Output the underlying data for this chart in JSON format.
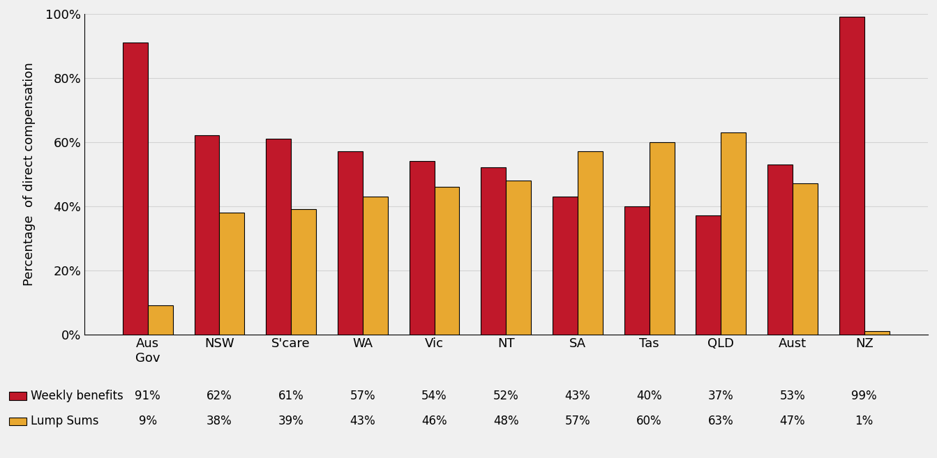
{
  "categories": [
    "Aus\nGov",
    "NSW",
    "S'care",
    "WA",
    "Vic",
    "NT",
    "SA",
    "Tas",
    "QLD",
    "Aust",
    "NZ"
  ],
  "weekly_benefits": [
    91,
    62,
    61,
    57,
    54,
    52,
    43,
    40,
    37,
    53,
    99
  ],
  "lump_sums": [
    9,
    38,
    39,
    43,
    46,
    48,
    57,
    60,
    63,
    47,
    1
  ],
  "weekly_benefits_labels": [
    "91%",
    "62%",
    "61%",
    "57%",
    "54%",
    "52%",
    "43%",
    "40%",
    "37%",
    "53%",
    "99%"
  ],
  "lump_sums_labels": [
    "9%",
    "38%",
    "39%",
    "43%",
    "46%",
    "48%",
    "57%",
    "60%",
    "63%",
    "47%",
    "1%"
  ],
  "color_weekly": "#C0182A",
  "color_lump": "#E8A830",
  "ylabel": "Percentage  of direct compensation",
  "ylim": [
    0,
    100
  ],
  "yticks": [
    0,
    20,
    40,
    60,
    80,
    100
  ],
  "ytick_labels": [
    "0%",
    "20%",
    "40%",
    "60%",
    "80%",
    "100%"
  ],
  "legend_weekly": "Weekly benefits",
  "legend_lump": "Lump Sums",
  "bar_width": 0.35,
  "figsize": [
    13.43,
    6.57
  ],
  "dpi": 100,
  "bg_color": "#f0f0f0"
}
